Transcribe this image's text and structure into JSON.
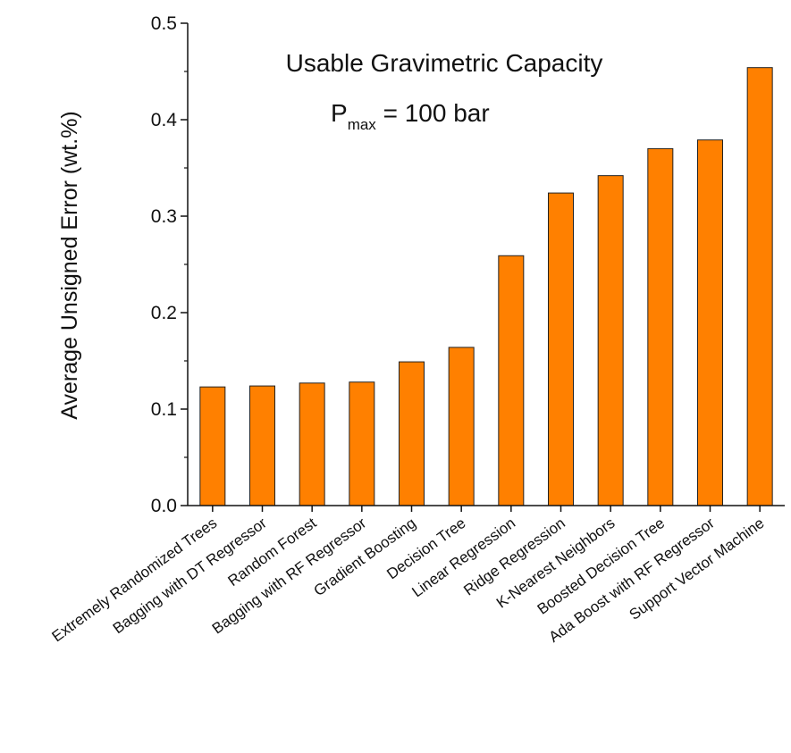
{
  "chart_data": {
    "type": "bar",
    "title": "",
    "xlabel": "",
    "ylabel": "Average Unsigned Error (wt.%)",
    "ylim": [
      0.0,
      0.5
    ],
    "yticks": [
      "0.0",
      "0.1",
      "0.2",
      "0.3",
      "0.4",
      "0.5"
    ],
    "categories": [
      "Extremely Randomized Trees",
      "Bagging with DT Regressor",
      "Random Forest",
      "Bagging with RF Regressor",
      "Gradient Boosting",
      "Decision Tree",
      "Linear Regression",
      "Ridge Regression",
      "K-Nearest Neighbors",
      "Boosted Decision Tree",
      "Ada Boost with RF Regressor",
      "Support Vector Machine"
    ],
    "values": [
      0.123,
      0.124,
      0.127,
      0.128,
      0.149,
      0.164,
      0.259,
      0.324,
      0.342,
      0.37,
      0.379,
      0.454
    ],
    "bar_color": "#ff8000",
    "bar_edge_color": "#222222",
    "grid": false,
    "legend": "none",
    "annotation": {
      "line1": "Usable Gravimetric Capacity",
      "p_symbol": "P",
      "p_subscript": "max",
      "p_rest": " = 100 bar"
    }
  }
}
